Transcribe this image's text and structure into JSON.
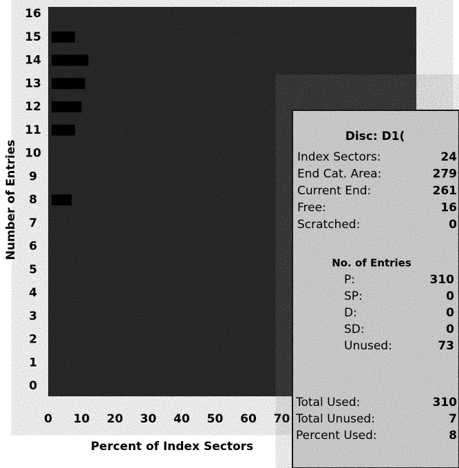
{
  "chart_data": {
    "type": "hbar",
    "y_label": "Number of Entries",
    "x_label": "Percent of Index Sectors",
    "categories": [
      "0",
      "1",
      "2",
      "3",
      "4",
      "5",
      "6",
      "7",
      "8",
      "9",
      "10",
      "11",
      "12",
      "13",
      "14",
      "15",
      "16"
    ],
    "values": [
      0,
      0,
      0,
      0,
      0,
      0,
      0,
      0,
      6,
      0,
      0,
      7,
      9,
      10,
      11,
      7,
      0
    ],
    "color": "#000000",
    "xlim": [
      0,
      110
    ],
    "xticks": [
      0,
      10,
      20,
      30,
      40,
      50,
      60,
      70
    ]
  },
  "panel": {
    "disc": "Disc: D1(",
    "rows": [
      [
        "Index Sectors:",
        "24"
      ],
      [
        "End Cat. Area:",
        "279"
      ],
      [
        "Current End:",
        "261"
      ],
      [
        "Free:",
        "16"
      ],
      [
        "Scratched:",
        "0"
      ]
    ],
    "entries_title": "No. of Entries",
    "entries": [
      [
        "P:",
        "310"
      ],
      [
        "SP:",
        "0"
      ],
      [
        "D:",
        "0"
      ],
      [
        "SD:",
        "0"
      ],
      [
        "Unused:",
        "73"
      ]
    ],
    "totals": [
      [
        "Total Used:",
        "310"
      ],
      [
        "Total Unused:",
        "7"
      ],
      [
        "Percent Used:",
        "8"
      ]
    ]
  }
}
